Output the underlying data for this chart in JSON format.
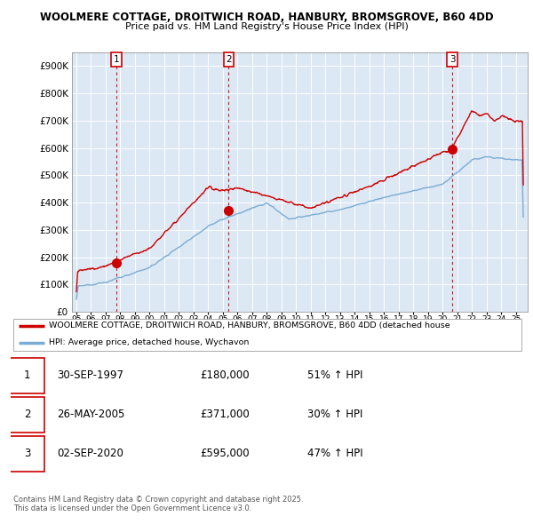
{
  "title1": "WOOLMERE COTTAGE, DROITWICH ROAD, HANBURY, BROMSGROVE, B60 4DD",
  "title2": "Price paid vs. HM Land Registry's House Price Index (HPI)",
  "legend_line1": "WOOLMERE COTTAGE, DROITWICH ROAD, HANBURY, BROMSGROVE, B60 4DD (detached house",
  "legend_line2": "HPI: Average price, detached house, Wychavon",
  "footer": "Contains HM Land Registry data © Crown copyright and database right 2025.\nThis data is licensed under the Open Government Licence v3.0.",
  "sale_color": "#cc0000",
  "hpi_color": "#7aadd4",
  "marker_color": "#cc0000",
  "vline_color": "#cc0000",
  "background_color": "#ffffff",
  "plot_bg_color": "#dde8f5",
  "grid_color": "#ffffff",
  "ylim": [
    0,
    950000
  ],
  "yticks": [
    0,
    100000,
    200000,
    300000,
    400000,
    500000,
    600000,
    700000,
    800000,
    900000
  ],
  "ytick_labels": [
    "£0",
    "£100K",
    "£200K",
    "£300K",
    "£400K",
    "£500K",
    "£600K",
    "£700K",
    "£800K",
    "£900K"
  ],
  "xlim_start": 1994.7,
  "xlim_end": 2025.8,
  "sales": [
    {
      "date": 1997.75,
      "price": 180000,
      "label": "1"
    },
    {
      "date": 2005.4,
      "price": 371000,
      "label": "2"
    },
    {
      "date": 2020.67,
      "price": 595000,
      "label": "3"
    }
  ],
  "table": [
    {
      "num": "1",
      "date": "30-SEP-1997",
      "price": "£180,000",
      "change": "51% ↑ HPI"
    },
    {
      "num": "2",
      "date": "26-MAY-2005",
      "price": "£371,000",
      "change": "30% ↑ HPI"
    },
    {
      "num": "3",
      "date": "02-SEP-2020",
      "price": "£595,000",
      "change": "47% ↑ HPI"
    }
  ],
  "xtick_years": [
    1995,
    1996,
    1997,
    1998,
    1999,
    2000,
    2001,
    2002,
    2003,
    2004,
    2005,
    2006,
    2007,
    2008,
    2009,
    2010,
    2011,
    2012,
    2013,
    2014,
    2015,
    2016,
    2017,
    2018,
    2019,
    2020,
    2021,
    2022,
    2023,
    2024,
    2025
  ]
}
